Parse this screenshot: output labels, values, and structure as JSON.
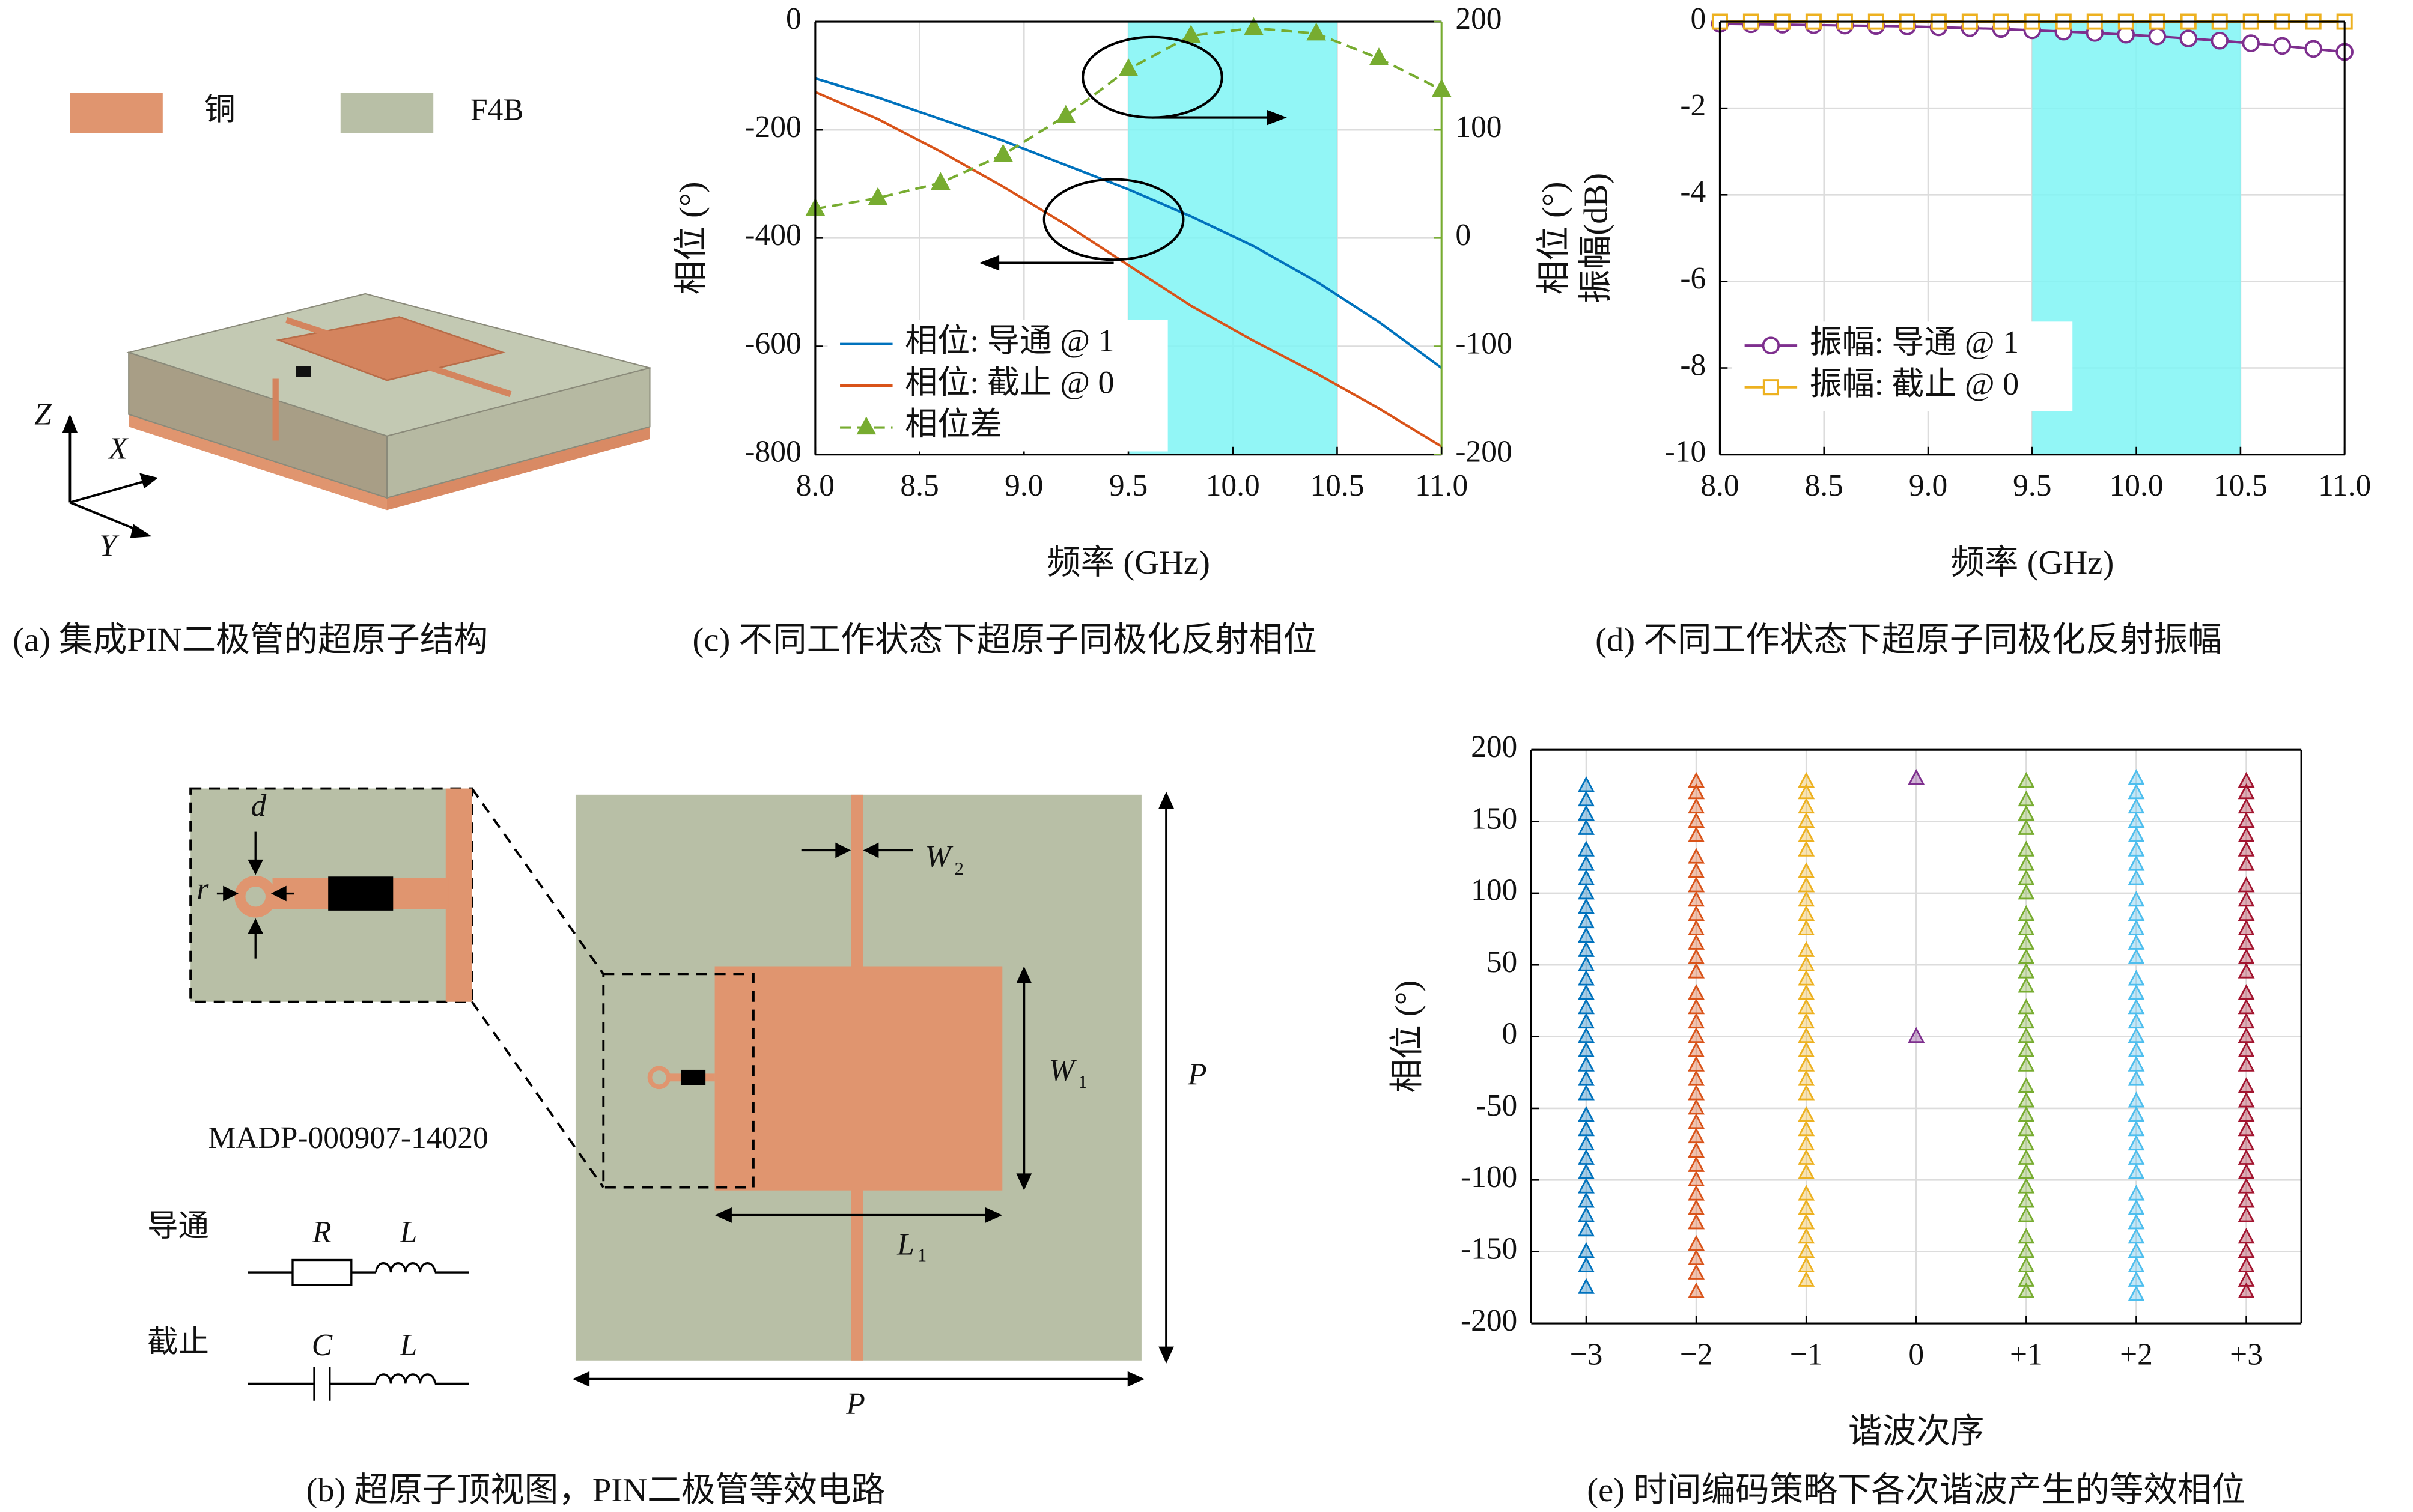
{
  "chart_data": [
    {
      "type": "line",
      "caption": "(c) 不同工作状态下超原子同极化反射相位",
      "xlabel": "频率 (GHz)",
      "ylabel": "相位 (°)",
      "y2label": "相位 (°)",
      "x": [
        8.0,
        8.3,
        8.6,
        8.9,
        9.2,
        9.5,
        9.8,
        10.1,
        10.4,
        10.7,
        11.0
      ],
      "xlim": [
        8,
        11
      ],
      "ylim": [
        -800,
        0
      ],
      "y2lim": [
        -200,
        200
      ],
      "xticks": [
        {
          "value": 8,
          "label": "8.0"
        },
        8.5,
        {
          "value": 9,
          "label": "9.0"
        },
        9.5,
        {
          "value": 10,
          "label": "10.0"
        },
        10.5,
        {
          "value": 11,
          "label": "11.0"
        }
      ],
      "yticks": [
        0,
        -200,
        -400,
        -600,
        -800
      ],
      "y2ticks": [
        200,
        100,
        0,
        -100,
        -200
      ],
      "y2_color": "#77ac30",
      "grid": true,
      "legend": "lower left",
      "highlight_x": [
        9.5,
        10.5
      ],
      "highlight_color": "#7ff5f5",
      "series": [
        {
          "name": "相位: 导通 @ 1",
          "color": "#0072bd",
          "values": [
            -105,
            -140,
            -180,
            -220,
            -265,
            -310,
            -360,
            -415,
            -480,
            -555,
            -640
          ]
        },
        {
          "name": "相位: 截止 @ 0",
          "color": "#d95319",
          "values": [
            -130,
            -180,
            -240,
            -305,
            -375,
            -450,
            -525,
            -590,
            -650,
            -715,
            -785
          ]
        },
        {
          "name": "相位差",
          "color": "#77ac30",
          "axis": "y2",
          "marker": "triangle",
          "dashed": true,
          "values": [
            27,
            37,
            51,
            77,
            113,
            156,
            187,
            194,
            189,
            166,
            137
          ]
        }
      ]
    },
    {
      "type": "line",
      "caption": "(d) 不同工作状态下超原子同极化反射振幅",
      "xlabel": "频率 (GHz)",
      "ylabel": "振幅(dB)",
      "x": [
        8.0,
        8.15,
        8.3,
        8.45,
        8.6,
        8.75,
        8.9,
        9.05,
        9.2,
        9.35,
        9.5,
        9.65,
        9.8,
        9.95,
        10.1,
        10.25,
        10.4,
        10.55,
        10.7,
        10.85,
        11.0
      ],
      "xlim": [
        8,
        11
      ],
      "ylim": [
        -10,
        0
      ],
      "xticks": [
        {
          "value": 8,
          "label": "8.0"
        },
        8.5,
        {
          "value": 9,
          "label": "9.0"
        },
        9.5,
        {
          "value": 10,
          "label": "10.0"
        },
        10.5,
        {
          "value": 11,
          "label": "11.0"
        }
      ],
      "yticks": [
        0,
        -2,
        -4,
        -6,
        -8,
        -10
      ],
      "grid": true,
      "legend": "upper left",
      "highlight_x": [
        9.5,
        10.5
      ],
      "highlight_color": "#7ff5f5",
      "series": [
        {
          "name": "振幅: 导通 @ 1",
          "color": "#7e2f8e",
          "marker": "circle",
          "values": [
            -0.05,
            -0.06,
            -0.07,
            -0.08,
            -0.09,
            -0.1,
            -0.11,
            -0.13,
            -0.15,
            -0.17,
            -0.2,
            -0.23,
            -0.26,
            -0.3,
            -0.34,
            -0.39,
            -0.44,
            -0.5,
            -0.56,
            -0.63,
            -0.7
          ]
        },
        {
          "name": "振幅: 截止 @ 0",
          "color": "#edb120",
          "marker": "square",
          "values": [
            0,
            0,
            0,
            0,
            0,
            0,
            0,
            0,
            0,
            0,
            0,
            0,
            0,
            0,
            0,
            0,
            0,
            0,
            0,
            0,
            0
          ]
        }
      ]
    },
    {
      "type": "scatter",
      "caption": "(e) 时间编码策略下各次谐波产生的等效相位",
      "xlabel": "谐波次序",
      "ylabel": "相位 (°)",
      "categories": [
        "−3",
        "−2",
        "−1",
        "0",
        "+1",
        "+2",
        "+3"
      ],
      "ylim": [
        -200,
        200
      ],
      "yticks": [
        200,
        150,
        100,
        50,
        0,
        -50,
        -100,
        -150,
        -200
      ],
      "grid": true,
      "series": [
        {
          "color": "#0072bd",
          "values": [
            175,
            165,
            155,
            145,
            130,
            120,
            110,
            100,
            90,
            80,
            70,
            60,
            50,
            40,
            30,
            20,
            10,
            0,
            -10,
            -20,
            -30,
            -40,
            -55,
            -65,
            -75,
            -85,
            -95,
            -105,
            -115,
            -125,
            -135,
            -150,
            -160,
            -175
          ]
        },
        {
          "color": "#d95319",
          "values": [
            178,
            170,
            160,
            150,
            140,
            125,
            115,
            105,
            95,
            85,
            75,
            65,
            55,
            45,
            30,
            20,
            10,
            0,
            -10,
            -20,
            -30,
            -40,
            -50,
            -60,
            -70,
            -80,
            -90,
            -100,
            -110,
            -120,
            -130,
            -145,
            -155,
            -165,
            -178
          ]
        },
        {
          "color": "#edb120",
          "values": [
            178,
            170,
            160,
            150,
            140,
            130,
            115,
            105,
            95,
            85,
            75,
            60,
            50,
            40,
            30,
            20,
            10,
            0,
            -10,
            -20,
            -30,
            -40,
            -55,
            -65,
            -75,
            -85,
            -95,
            -110,
            -120,
            -130,
            -140,
            -150,
            -160,
            -170
          ]
        },
        {
          "color": "#7e2f8e",
          "values": [
            180,
            0
          ]
        },
        {
          "color": "#77ac30",
          "values": [
            178,
            165,
            155,
            145,
            130,
            120,
            110,
            100,
            85,
            75,
            65,
            55,
            45,
            35,
            20,
            10,
            0,
            -10,
            -20,
            -35,
            -45,
            -55,
            -65,
            -75,
            -85,
            -95,
            -105,
            -115,
            -125,
            -140,
            -150,
            -160,
            -170,
            -178
          ]
        },
        {
          "color": "#4dbeee",
          "values": [
            180,
            170,
            160,
            150,
            140,
            130,
            120,
            110,
            95,
            85,
            75,
            65,
            55,
            40,
            30,
            20,
            10,
            0,
            -10,
            -20,
            -30,
            -45,
            -55,
            -65,
            -75,
            -85,
            -95,
            -110,
            -120,
            -130,
            -140,
            -150,
            -160,
            -170,
            -180
          ]
        },
        {
          "color": "#a2142f",
          "values": [
            178,
            170,
            160,
            150,
            140,
            130,
            120,
            105,
            95,
            85,
            75,
            65,
            55,
            45,
            30,
            20,
            10,
            0,
            -10,
            -20,
            -35,
            -45,
            -55,
            -65,
            -75,
            -85,
            -95,
            -105,
            -115,
            -125,
            -140,
            -150,
            -160,
            -170,
            -178
          ]
        }
      ]
    }
  ],
  "panel_a": {
    "legend": [
      "铜",
      "F4B"
    ],
    "axes": [
      "Z",
      "X",
      "Y"
    ],
    "caption": "(a) 集成PIN二极管的超原子结构"
  },
  "panel_b": {
    "labels": {
      "d": "d",
      "r": "r",
      "w2": [
        "W",
        "2"
      ],
      "w1": [
        "W",
        "1"
      ],
      "l1": [
        "L",
        "1"
      ],
      "p_right": "P",
      "p_bottom": "P"
    },
    "part_number": "MADP-000907-14020",
    "circuit": {
      "on": {
        "state": "导通",
        "parts": [
          "R",
          "L"
        ]
      },
      "off": {
        "state": "截止",
        "parts": [
          "C",
          "L"
        ]
      }
    },
    "caption": "(b) 超原子顶视图，PIN二极管等效电路"
  }
}
